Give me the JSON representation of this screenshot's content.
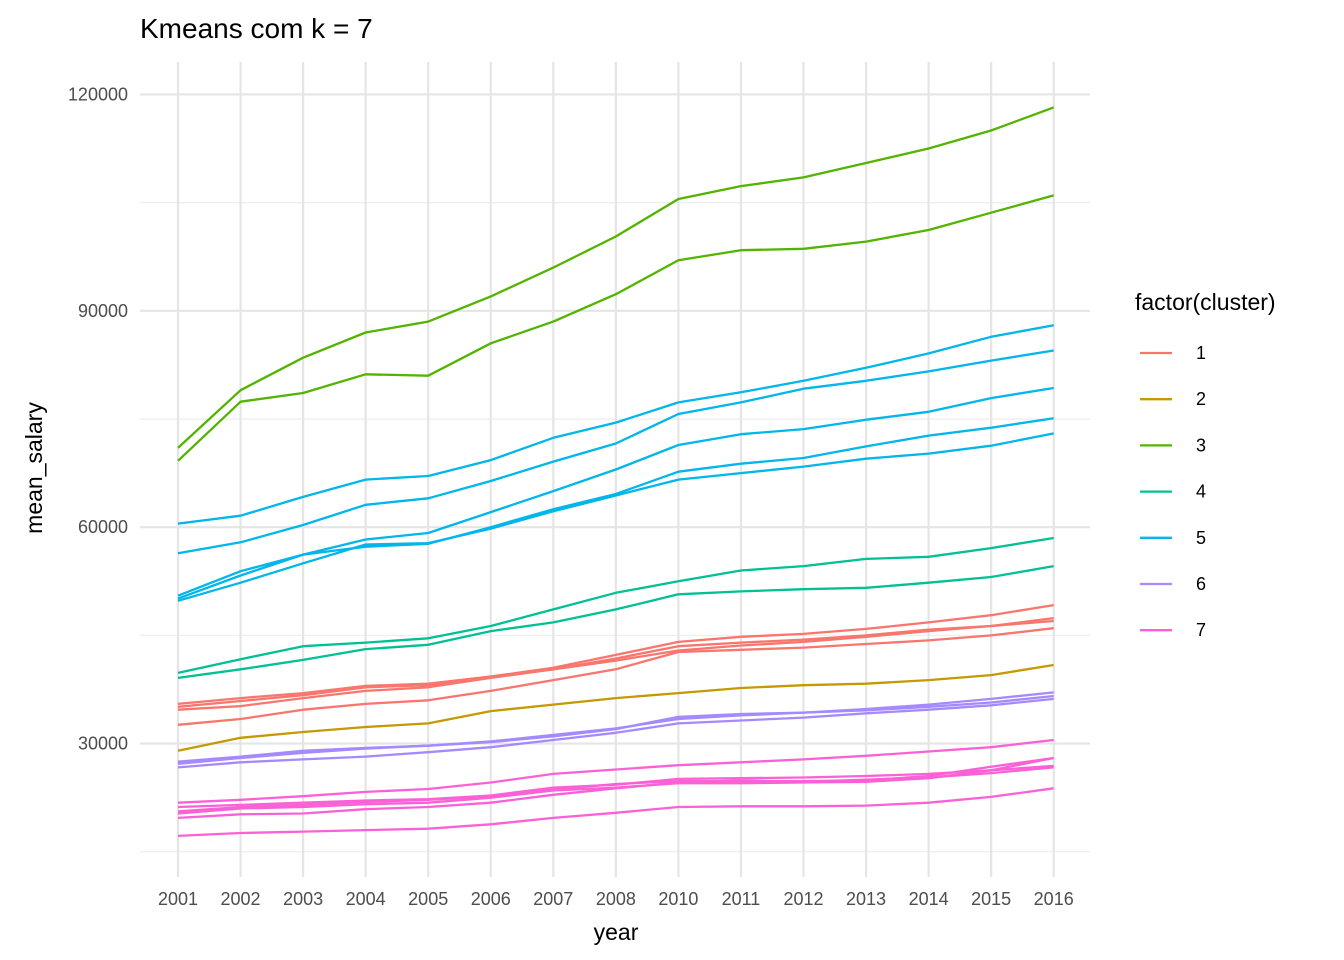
{
  "chart_data": {
    "type": "line",
    "title": "Kmeans com k = 7",
    "xlabel": "year",
    "ylabel": "mean_salary",
    "categories": [
      "2001",
      "2002",
      "2003",
      "2004",
      "2005",
      "2006",
      "2007",
      "2008",
      "2010",
      "2011",
      "2012",
      "2013",
      "2014",
      "2015",
      "2016"
    ],
    "y_ticks": [
      "30000",
      "60000",
      "90000",
      "120000"
    ],
    "ylim": [
      11500,
      124500
    ],
    "grid": true,
    "legend": {
      "title": "factor(cluster)",
      "position": "right"
    },
    "clusters": [
      {
        "name": "1",
        "color": "#F8766D"
      },
      {
        "name": "2",
        "color": "#C49A00"
      },
      {
        "name": "3",
        "color": "#53B400"
      },
      {
        "name": "4",
        "color": "#00C094"
      },
      {
        "name": "5",
        "color": "#00B6EB"
      },
      {
        "name": "6",
        "color": "#A58AFF"
      },
      {
        "name": "7",
        "color": "#FB61D7"
      }
    ],
    "series": [
      {
        "cluster": "1",
        "values": [
          35500,
          36300,
          37000,
          38000,
          38300,
          39300,
          40300,
          41800,
          43500,
          44000,
          44400,
          45000,
          45800,
          46300,
          47400
        ]
      },
      {
        "cluster": "1",
        "values": [
          35100,
          35900,
          36700,
          37800,
          38100,
          39300,
          40500,
          42300,
          44100,
          44800,
          45200,
          45900,
          46800,
          47800,
          49200
        ]
      },
      {
        "cluster": "1",
        "values": [
          34700,
          35200,
          36300,
          37300,
          37800,
          39100,
          40300,
          41500,
          42900,
          43600,
          44100,
          44800,
          45600,
          46300,
          47000
        ]
      },
      {
        "cluster": "1",
        "values": [
          32600,
          33400,
          34700,
          35500,
          36000,
          37300,
          38800,
          40300,
          42700,
          43000,
          43300,
          43800,
          44300,
          45000,
          46000
        ]
      },
      {
        "cluster": "2",
        "values": [
          29000,
          30800,
          31600,
          32300,
          32800,
          34500,
          35400,
          36300,
          37000,
          37700,
          38100,
          38300,
          38800,
          39500,
          40900
        ]
      },
      {
        "cluster": "3",
        "values": [
          71000,
          79000,
          83500,
          87000,
          88500,
          92000,
          96000,
          100300,
          105500,
          107300,
          108500,
          110500,
          112500,
          115000,
          118200
        ]
      },
      {
        "cluster": "3",
        "values": [
          69200,
          77400,
          78600,
          81200,
          81000,
          85500,
          88500,
          92300,
          97000,
          98400,
          98600,
          99600,
          101200,
          103600,
          106000
        ]
      },
      {
        "cluster": "4",
        "values": [
          39800,
          41700,
          43500,
          44000,
          44600,
          46300,
          48600,
          50900,
          52500,
          54000,
          54600,
          55600,
          55900,
          57100,
          58500
        ]
      },
      {
        "cluster": "4",
        "values": [
          39100,
          40300,
          41600,
          43100,
          43700,
          45600,
          46800,
          48600,
          50700,
          51100,
          51400,
          51600,
          52300,
          53100,
          54600
        ]
      },
      {
        "cluster": "5",
        "values": [
          60500,
          61600,
          64200,
          66600,
          67100,
          69300,
          72400,
          74500,
          77300,
          78700,
          80300,
          82100,
          84100,
          86400,
          88000
        ]
      },
      {
        "cluster": "5",
        "values": [
          56400,
          57900,
          60300,
          63100,
          64000,
          66400,
          69100,
          71600,
          75700,
          77300,
          79200,
          80300,
          81600,
          83100,
          84500
        ]
      },
      {
        "cluster": "5",
        "values": [
          50500,
          53900,
          56200,
          58300,
          59200,
          62100,
          65000,
          68000,
          71400,
          72900,
          73600,
          74900,
          76000,
          77900,
          79300
        ]
      },
      {
        "cluster": "5",
        "values": [
          50100,
          53300,
          56200,
          57300,
          57700,
          60000,
          62500,
          64600,
          67700,
          68800,
          69600,
          71200,
          72700,
          73800,
          75100
        ]
      },
      {
        "cluster": "5",
        "values": [
          49800,
          52300,
          55000,
          57600,
          57800,
          59800,
          62200,
          64400,
          66600,
          67500,
          68400,
          69500,
          70200,
          71300,
          73000
        ]
      },
      {
        "cluster": "6",
        "values": [
          27500,
          28200,
          29000,
          29400,
          29700,
          30300,
          31200,
          32100,
          33400,
          33900,
          34300,
          34800,
          35400,
          36200,
          37100
        ]
      },
      {
        "cluster": "6",
        "values": [
          27200,
          28000,
          28700,
          29300,
          29700,
          30200,
          31000,
          32000,
          33700,
          34100,
          34300,
          34600,
          35100,
          35700,
          36600
        ]
      },
      {
        "cluster": "6",
        "values": [
          26700,
          27400,
          27800,
          28200,
          28800,
          29500,
          30500,
          31500,
          32800,
          33200,
          33600,
          34200,
          34700,
          35300,
          36200
        ]
      },
      {
        "cluster": "7",
        "values": [
          21800,
          22200,
          22700,
          23300,
          23700,
          24600,
          25800,
          26400,
          27000,
          27400,
          27800,
          28300,
          28900,
          29500,
          30500
        ]
      },
      {
        "cluster": "7",
        "values": [
          21200,
          21500,
          21800,
          22100,
          22300,
          22800,
          23900,
          24300,
          25100,
          25200,
          25300,
          25500,
          25800,
          26300,
          26900
        ]
      },
      {
        "cluster": "7",
        "values": [
          20600,
          21200,
          21500,
          21900,
          22200,
          22700,
          23600,
          24400,
          24800,
          24800,
          24800,
          24900,
          25500,
          26800,
          28000
        ]
      },
      {
        "cluster": "7",
        "values": [
          20300,
          21000,
          21200,
          21600,
          21800,
          22500,
          23500,
          23900,
          24500,
          24500,
          24600,
          24700,
          25200,
          26300,
          28000
        ]
      },
      {
        "cluster": "7",
        "values": [
          19700,
          20200,
          20300,
          20900,
          21200,
          21800,
          22900,
          23800,
          24600,
          24900,
          24700,
          25000,
          25300,
          25900,
          26700
        ]
      },
      {
        "cluster": "7",
        "values": [
          17200,
          17600,
          17800,
          18000,
          18200,
          18800,
          19700,
          20400,
          21200,
          21300,
          21300,
          21400,
          21800,
          22600,
          23800
        ]
      }
    ]
  }
}
